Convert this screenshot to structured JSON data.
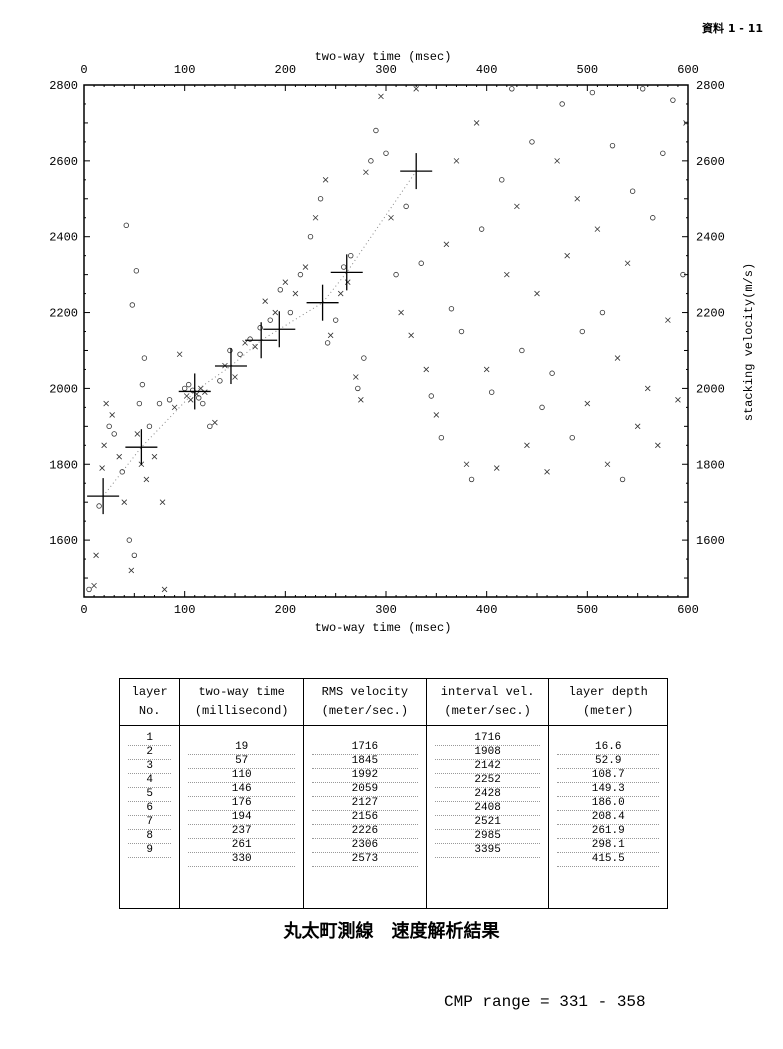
{
  "doc_id": "資料 1 - 11",
  "chart_data": {
    "type": "scatter",
    "x_axis_label": "two-way time (msec)",
    "y_axis_label": "stacking velocity(m/s)",
    "xlim": [
      0,
      600
    ],
    "ylim": [
      1450,
      2800
    ],
    "x_ticks": [
      0,
      100,
      200,
      300,
      400,
      500,
      600
    ],
    "y_ticks": [
      1600,
      1800,
      2000,
      2200,
      2400,
      2600,
      2800
    ],
    "picks": [
      {
        "layer": 1,
        "x": 19,
        "y": 1716
      },
      {
        "layer": 2,
        "x": 57,
        "y": 1845
      },
      {
        "layer": 3,
        "x": 110,
        "y": 1992
      },
      {
        "layer": 4,
        "x": 146,
        "y": 2059
      },
      {
        "layer": 5,
        "x": 176,
        "y": 2127
      },
      {
        "layer": 6,
        "x": 194,
        "y": 2156
      },
      {
        "layer": 7,
        "x": 237,
        "y": 2226
      },
      {
        "layer": 8,
        "x": 261,
        "y": 2306
      },
      {
        "layer": 9,
        "x": 330,
        "y": 2573
      }
    ],
    "semblance_points": [
      {
        "x": 5,
        "y": 1470,
        "m": "o"
      },
      {
        "x": 10,
        "y": 1480,
        "m": "x"
      },
      {
        "x": 12,
        "y": 1560,
        "m": "x"
      },
      {
        "x": 15,
        "y": 1690,
        "m": "o"
      },
      {
        "x": 18,
        "y": 1790,
        "m": "x"
      },
      {
        "x": 20,
        "y": 1850,
        "m": "x"
      },
      {
        "x": 22,
        "y": 1960,
        "m": "x"
      },
      {
        "x": 25,
        "y": 1900,
        "m": "o"
      },
      {
        "x": 28,
        "y": 1930,
        "m": "x"
      },
      {
        "x": 30,
        "y": 1880,
        "m": "o"
      },
      {
        "x": 35,
        "y": 1820,
        "m": "x"
      },
      {
        "x": 38,
        "y": 1780,
        "m": "o"
      },
      {
        "x": 40,
        "y": 1700,
        "m": "x"
      },
      {
        "x": 42,
        "y": 2430,
        "m": "o"
      },
      {
        "x": 45,
        "y": 1600,
        "m": "o"
      },
      {
        "x": 47,
        "y": 1520,
        "m": "x"
      },
      {
        "x": 48,
        "y": 2220,
        "m": "o"
      },
      {
        "x": 50,
        "y": 1560,
        "m": "o"
      },
      {
        "x": 52,
        "y": 2310,
        "m": "o"
      },
      {
        "x": 53,
        "y": 1880,
        "m": "x"
      },
      {
        "x": 55,
        "y": 1960,
        "m": "o"
      },
      {
        "x": 57,
        "y": 1800,
        "m": "x"
      },
      {
        "x": 58,
        "y": 2010,
        "m": "o"
      },
      {
        "x": 60,
        "y": 2080,
        "m": "o"
      },
      {
        "x": 62,
        "y": 1760,
        "m": "x"
      },
      {
        "x": 65,
        "y": 1900,
        "m": "o"
      },
      {
        "x": 70,
        "y": 1820,
        "m": "x"
      },
      {
        "x": 75,
        "y": 1960,
        "m": "o"
      },
      {
        "x": 78,
        "y": 1700,
        "m": "x"
      },
      {
        "x": 80,
        "y": 1470,
        "m": "x"
      },
      {
        "x": 85,
        "y": 1970,
        "m": "o"
      },
      {
        "x": 90,
        "y": 1950,
        "m": "x"
      },
      {
        "x": 95,
        "y": 2090,
        "m": "x"
      },
      {
        "x": 100,
        "y": 2000,
        "m": "o"
      },
      {
        "x": 102,
        "y": 1980,
        "m": "x"
      },
      {
        "x": 104,
        "y": 2010,
        "m": "o"
      },
      {
        "x": 106,
        "y": 1970,
        "m": "x"
      },
      {
        "x": 108,
        "y": 1995,
        "m": "o"
      },
      {
        "x": 112,
        "y": 1985,
        "m": "x"
      },
      {
        "x": 114,
        "y": 1975,
        "m": "o"
      },
      {
        "x": 116,
        "y": 2000,
        "m": "x"
      },
      {
        "x": 118,
        "y": 1960,
        "m": "o"
      },
      {
        "x": 120,
        "y": 1990,
        "m": "x"
      },
      {
        "x": 125,
        "y": 1900,
        "m": "o"
      },
      {
        "x": 130,
        "y": 1910,
        "m": "x"
      },
      {
        "x": 135,
        "y": 2020,
        "m": "o"
      },
      {
        "x": 140,
        "y": 2060,
        "m": "x"
      },
      {
        "x": 145,
        "y": 2100,
        "m": "o"
      },
      {
        "x": 150,
        "y": 2030,
        "m": "x"
      },
      {
        "x": 155,
        "y": 2090,
        "m": "o"
      },
      {
        "x": 160,
        "y": 2120,
        "m": "x"
      },
      {
        "x": 165,
        "y": 2130,
        "m": "o"
      },
      {
        "x": 170,
        "y": 2110,
        "m": "x"
      },
      {
        "x": 175,
        "y": 2160,
        "m": "o"
      },
      {
        "x": 180,
        "y": 2230,
        "m": "x"
      },
      {
        "x": 185,
        "y": 2180,
        "m": "o"
      },
      {
        "x": 190,
        "y": 2200,
        "m": "x"
      },
      {
        "x": 195,
        "y": 2260,
        "m": "o"
      },
      {
        "x": 200,
        "y": 2280,
        "m": "x"
      },
      {
        "x": 205,
        "y": 2200,
        "m": "o"
      },
      {
        "x": 210,
        "y": 2250,
        "m": "x"
      },
      {
        "x": 215,
        "y": 2300,
        "m": "o"
      },
      {
        "x": 220,
        "y": 2320,
        "m": "x"
      },
      {
        "x": 225,
        "y": 2400,
        "m": "o"
      },
      {
        "x": 230,
        "y": 2450,
        "m": "x"
      },
      {
        "x": 235,
        "y": 2500,
        "m": "o"
      },
      {
        "x": 240,
        "y": 2550,
        "m": "x"
      },
      {
        "x": 242,
        "y": 2120,
        "m": "o"
      },
      {
        "x": 245,
        "y": 2140,
        "m": "x"
      },
      {
        "x": 250,
        "y": 2180,
        "m": "o"
      },
      {
        "x": 255,
        "y": 2250,
        "m": "x"
      },
      {
        "x": 258,
        "y": 2320,
        "m": "o"
      },
      {
        "x": 262,
        "y": 2280,
        "m": "x"
      },
      {
        "x": 265,
        "y": 2350,
        "m": "o"
      },
      {
        "x": 270,
        "y": 2030,
        "m": "x"
      },
      {
        "x": 272,
        "y": 2000,
        "m": "o"
      },
      {
        "x": 275,
        "y": 1970,
        "m": "x"
      },
      {
        "x": 278,
        "y": 2080,
        "m": "o"
      },
      {
        "x": 280,
        "y": 2570,
        "m": "x"
      },
      {
        "x": 285,
        "y": 2600,
        "m": "o"
      },
      {
        "x": 290,
        "y": 2680,
        "m": "o"
      },
      {
        "x": 295,
        "y": 2770,
        "m": "x"
      },
      {
        "x": 300,
        "y": 2620,
        "m": "o"
      },
      {
        "x": 305,
        "y": 2450,
        "m": "x"
      },
      {
        "x": 310,
        "y": 2300,
        "m": "o"
      },
      {
        "x": 315,
        "y": 2200,
        "m": "x"
      },
      {
        "x": 320,
        "y": 2480,
        "m": "o"
      },
      {
        "x": 325,
        "y": 2140,
        "m": "x"
      },
      {
        "x": 330,
        "y": 2790,
        "m": "x"
      },
      {
        "x": 335,
        "y": 2330,
        "m": "o"
      },
      {
        "x": 340,
        "y": 2050,
        "m": "x"
      },
      {
        "x": 345,
        "y": 1980,
        "m": "o"
      },
      {
        "x": 350,
        "y": 1930,
        "m": "x"
      },
      {
        "x": 355,
        "y": 1870,
        "m": "o"
      },
      {
        "x": 360,
        "y": 2380,
        "m": "x"
      },
      {
        "x": 365,
        "y": 2210,
        "m": "o"
      },
      {
        "x": 370,
        "y": 2600,
        "m": "x"
      },
      {
        "x": 375,
        "y": 2150,
        "m": "o"
      },
      {
        "x": 380,
        "y": 1800,
        "m": "x"
      },
      {
        "x": 385,
        "y": 1760,
        "m": "o"
      },
      {
        "x": 390,
        "y": 2700,
        "m": "x"
      },
      {
        "x": 395,
        "y": 2420,
        "m": "o"
      },
      {
        "x": 400,
        "y": 2050,
        "m": "x"
      },
      {
        "x": 405,
        "y": 1990,
        "m": "o"
      },
      {
        "x": 410,
        "y": 1790,
        "m": "x"
      },
      {
        "x": 415,
        "y": 2550,
        "m": "o"
      },
      {
        "x": 420,
        "y": 2300,
        "m": "x"
      },
      {
        "x": 425,
        "y": 2790,
        "m": "o"
      },
      {
        "x": 430,
        "y": 2480,
        "m": "x"
      },
      {
        "x": 435,
        "y": 2100,
        "m": "o"
      },
      {
        "x": 440,
        "y": 1850,
        "m": "x"
      },
      {
        "x": 445,
        "y": 2650,
        "m": "o"
      },
      {
        "x": 450,
        "y": 2250,
        "m": "x"
      },
      {
        "x": 455,
        "y": 1950,
        "m": "o"
      },
      {
        "x": 460,
        "y": 1780,
        "m": "x"
      },
      {
        "x": 465,
        "y": 2040,
        "m": "o"
      },
      {
        "x": 470,
        "y": 2600,
        "m": "x"
      },
      {
        "x": 475,
        "y": 2750,
        "m": "o"
      },
      {
        "x": 480,
        "y": 2350,
        "m": "x"
      },
      {
        "x": 485,
        "y": 1870,
        "m": "o"
      },
      {
        "x": 490,
        "y": 2500,
        "m": "x"
      },
      {
        "x": 495,
        "y": 2150,
        "m": "o"
      },
      {
        "x": 500,
        "y": 1960,
        "m": "x"
      },
      {
        "x": 505,
        "y": 2780,
        "m": "o"
      },
      {
        "x": 510,
        "y": 2420,
        "m": "x"
      },
      {
        "x": 515,
        "y": 2200,
        "m": "o"
      },
      {
        "x": 520,
        "y": 1800,
        "m": "x"
      },
      {
        "x": 525,
        "y": 2640,
        "m": "o"
      },
      {
        "x": 530,
        "y": 2080,
        "m": "x"
      },
      {
        "x": 535,
        "y": 1760,
        "m": "o"
      },
      {
        "x": 540,
        "y": 2330,
        "m": "x"
      },
      {
        "x": 545,
        "y": 2520,
        "m": "o"
      },
      {
        "x": 550,
        "y": 1900,
        "m": "x"
      },
      {
        "x": 555,
        "y": 2790,
        "m": "o"
      },
      {
        "x": 560,
        "y": 2000,
        "m": "x"
      },
      {
        "x": 565,
        "y": 2450,
        "m": "o"
      },
      {
        "x": 570,
        "y": 1850,
        "m": "x"
      },
      {
        "x": 575,
        "y": 2620,
        "m": "o"
      },
      {
        "x": 580,
        "y": 2180,
        "m": "x"
      },
      {
        "x": 585,
        "y": 2760,
        "m": "o"
      },
      {
        "x": 590,
        "y": 1970,
        "m": "x"
      },
      {
        "x": 595,
        "y": 2300,
        "m": "o"
      },
      {
        "x": 598,
        "y": 2700,
        "m": "x"
      }
    ]
  },
  "table": {
    "headers": [
      {
        "line1": "layer",
        "line2": "No."
      },
      {
        "line1": "two-way time",
        "line2": "(millisecond)"
      },
      {
        "line1": "RMS velocity",
        "line2": "(meter/sec.)"
      },
      {
        "line1": "interval vel.",
        "line2": "(meter/sec.)"
      },
      {
        "line1": "layer depth",
        "line2": "(meter)"
      }
    ],
    "layers": [
      "1",
      "2",
      "3",
      "4",
      "5",
      "6",
      "7",
      "8",
      "9"
    ],
    "two_way_time": [
      "19",
      "57",
      "110",
      "146",
      "176",
      "194",
      "237",
      "261",
      "330"
    ],
    "rms_velocity": [
      "1716",
      "1845",
      "1992",
      "2059",
      "2127",
      "2156",
      "2226",
      "2306",
      "2573"
    ],
    "interval_velocity": [
      "1716",
      "1908",
      "2142",
      "2252",
      "2428",
      "2408",
      "2521",
      "2985",
      "3395"
    ],
    "layer_depth": [
      "16.6",
      "52.9",
      "108.7",
      "149.3",
      "186.0",
      "208.4",
      "261.9",
      "298.1",
      "415.5"
    ]
  },
  "caption": "丸太町測線　速度解析結果",
  "cmp_range": "CMP range = 331 - 358"
}
